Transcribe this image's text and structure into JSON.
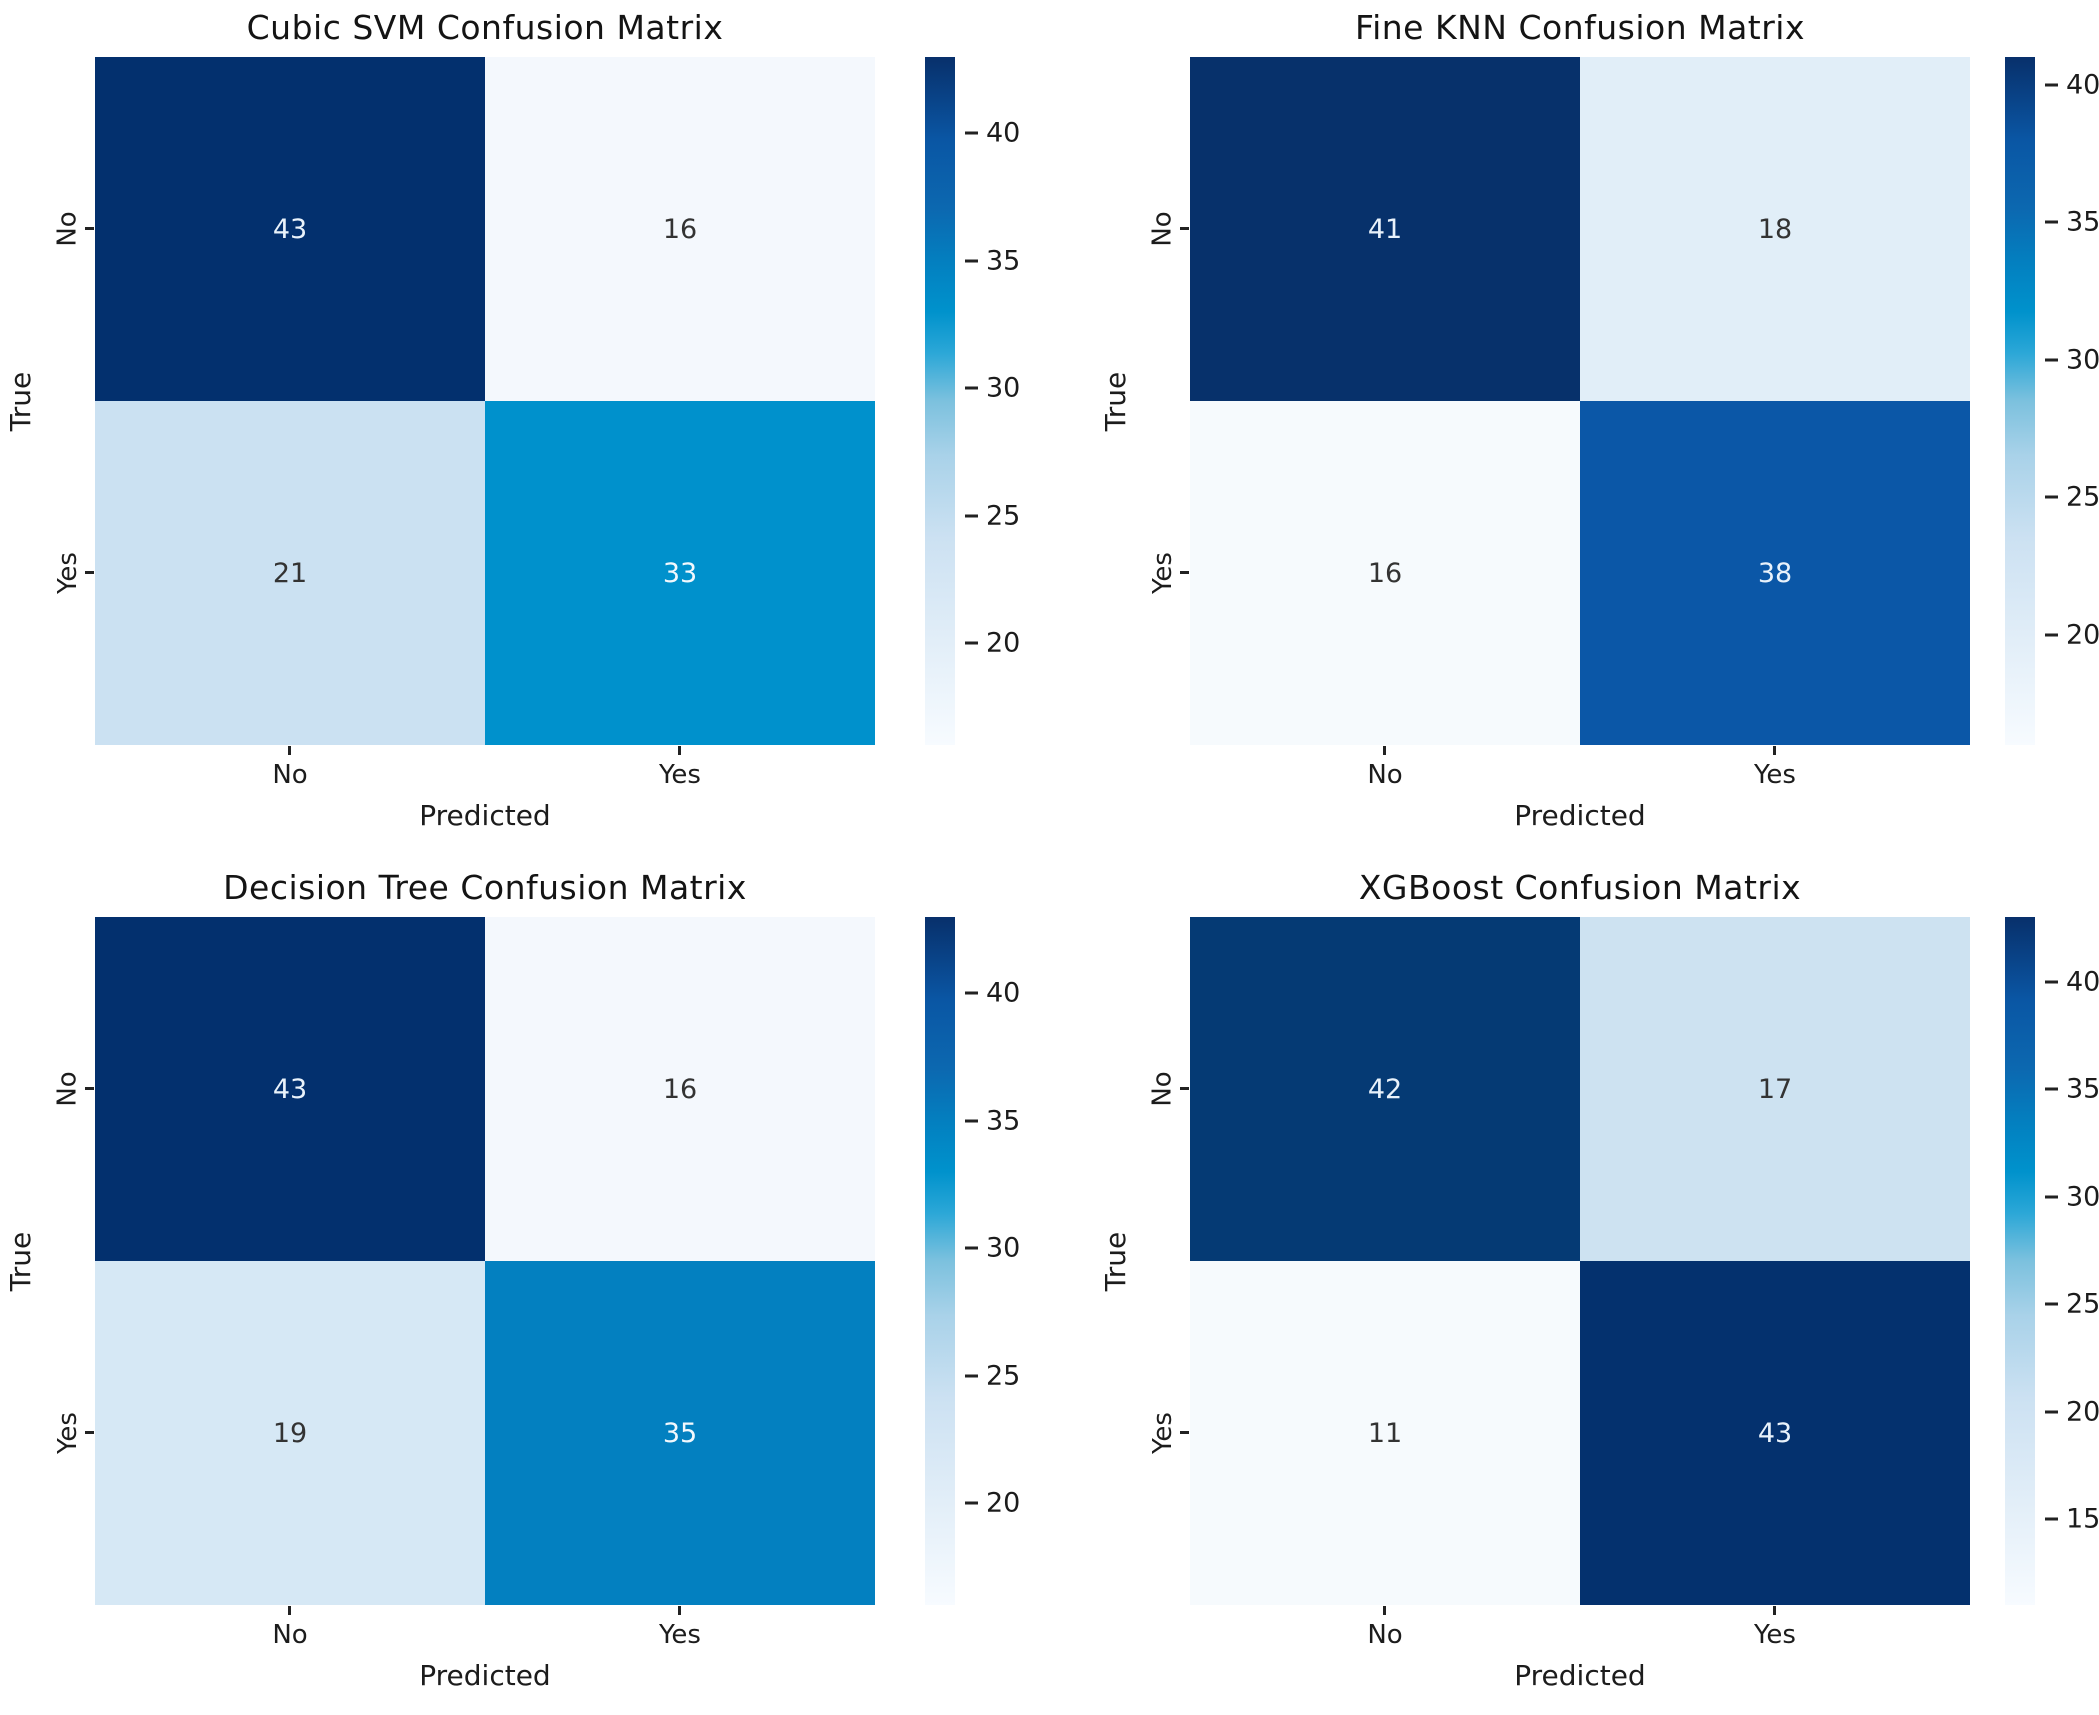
{
  "figure": {
    "background": "#ffffff"
  },
  "colormap_gradient": [
    {
      "stop": 0,
      "color": "#f7fbff"
    },
    {
      "stop": 15,
      "color": "#e2eef8"
    },
    {
      "stop": 30,
      "color": "#cce1f2"
    },
    {
      "stop": 42,
      "color": "#a9d2e9"
    },
    {
      "stop": 50,
      "color": "#7cc1de"
    },
    {
      "stop": 57,
      "color": "#2ba7d7"
    },
    {
      "stop": 63,
      "color": "#0092cc"
    },
    {
      "stop": 70,
      "color": "#0380c0"
    },
    {
      "stop": 78,
      "color": "#0c68b0"
    },
    {
      "stop": 88,
      "color": "#0a56a4"
    },
    {
      "stop": 100,
      "color": "#08306b"
    }
  ],
  "plots": [
    {
      "title": "Cubic SVM Confusion Matrix",
      "xlabel": "Predicted",
      "ylabel": "True",
      "xticks": [
        "No",
        "Yes"
      ],
      "yticks": [
        "No",
        "Yes"
      ],
      "cells": [
        {
          "value": "43",
          "bg": "#03306e",
          "fg": "#e9f2fb"
        },
        {
          "value": "16",
          "bg": "#f4f8fd",
          "fg": "#333333"
        },
        {
          "value": "21",
          "bg": "#cbe1f2",
          "fg": "#333333"
        },
        {
          "value": "33",
          "bg": "#0091cc",
          "fg": "#f2f8fd"
        }
      ],
      "colorbar": {
        "vmin": 16,
        "vmax": 43,
        "ticks": [
          {
            "label": "40",
            "pos": 11.11
          },
          {
            "label": "35",
            "pos": 29.63
          },
          {
            "label": "30",
            "pos": 48.15
          },
          {
            "label": "25",
            "pos": 66.67
          },
          {
            "label": "20",
            "pos": 85.19
          }
        ]
      }
    },
    {
      "title": "Fine KNN Confusion Matrix",
      "xlabel": "Predicted",
      "ylabel": "True",
      "xticks": [
        "No",
        "Yes"
      ],
      "yticks": [
        "No",
        "Yes"
      ],
      "cells": [
        {
          "value": "41",
          "bg": "#07316b",
          "fg": "#e9f2fb"
        },
        {
          "value": "18",
          "bg": "#e1eef8",
          "fg": "#333333"
        },
        {
          "value": "16",
          "bg": "#f6fafd",
          "fg": "#333333"
        },
        {
          "value": "38",
          "bg": "#0b57a7",
          "fg": "#e9f2fb"
        }
      ],
      "colorbar": {
        "vmin": 16,
        "vmax": 41,
        "ticks": [
          {
            "label": "40",
            "pos": 4.0
          },
          {
            "label": "35",
            "pos": 24.0
          },
          {
            "label": "30",
            "pos": 44.0
          },
          {
            "label": "25",
            "pos": 64.0
          },
          {
            "label": "20",
            "pos": 84.0
          }
        ]
      }
    },
    {
      "title": "Decision Tree Confusion Matrix",
      "xlabel": "Predicted",
      "ylabel": "True",
      "xticks": [
        "No",
        "Yes"
      ],
      "yticks": [
        "No",
        "Yes"
      ],
      "cells": [
        {
          "value": "43",
          "bg": "#03306e",
          "fg": "#e9f2fb"
        },
        {
          "value": "16",
          "bg": "#f4f8fd",
          "fg": "#333333"
        },
        {
          "value": "19",
          "bg": "#d6e8f5",
          "fg": "#333333"
        },
        {
          "value": "35",
          "bg": "#0380c0",
          "fg": "#f2f8fd"
        }
      ],
      "colorbar": {
        "vmin": 16,
        "vmax": 43,
        "ticks": [
          {
            "label": "40",
            "pos": 11.11
          },
          {
            "label": "35",
            "pos": 29.63
          },
          {
            "label": "30",
            "pos": 48.15
          },
          {
            "label": "25",
            "pos": 66.67
          },
          {
            "label": "20",
            "pos": 85.19
          }
        ]
      }
    },
    {
      "title": "XGBoost Confusion Matrix",
      "xlabel": "Predicted",
      "ylabel": "True",
      "xticks": [
        "No",
        "Yes"
      ],
      "yticks": [
        "No",
        "Yes"
      ],
      "cells": [
        {
          "value": "42",
          "bg": "#053a74",
          "fg": "#e9f2fb"
        },
        {
          "value": "17",
          "bg": "#cde2f1",
          "fg": "#333333"
        },
        {
          "value": "11",
          "bg": "#f6fafd",
          "fg": "#333333"
        },
        {
          "value": "43",
          "bg": "#04316e",
          "fg": "#e9f2fb"
        }
      ],
      "colorbar": {
        "vmin": 11,
        "vmax": 43,
        "ticks": [
          {
            "label": "40",
            "pos": 9.38
          },
          {
            "label": "35",
            "pos": 25.0
          },
          {
            "label": "30",
            "pos": 40.63
          },
          {
            "label": "25",
            "pos": 56.25
          },
          {
            "label": "20",
            "pos": 71.88
          },
          {
            "label": "15",
            "pos": 87.5
          }
        ]
      }
    }
  ],
  "chart_data": [
    {
      "type": "heatmap",
      "title": "Cubic SVM Confusion Matrix",
      "xlabel": "Predicted",
      "ylabel": "True",
      "x_categories": [
        "No",
        "Yes"
      ],
      "y_categories": [
        "No",
        "Yes"
      ],
      "matrix": [
        [
          43,
          16
        ],
        [
          21,
          33
        ]
      ],
      "vmin": 16,
      "vmax": 43,
      "colorbar_ticks": [
        20,
        25,
        30,
        35,
        40
      ],
      "colormap": "Blues",
      "legend_position": "colorbar-right"
    },
    {
      "type": "heatmap",
      "title": "Fine KNN Confusion Matrix",
      "xlabel": "Predicted",
      "ylabel": "True",
      "x_categories": [
        "No",
        "Yes"
      ],
      "y_categories": [
        "No",
        "Yes"
      ],
      "matrix": [
        [
          41,
          18
        ],
        [
          16,
          38
        ]
      ],
      "vmin": 16,
      "vmax": 41,
      "colorbar_ticks": [
        20,
        25,
        30,
        35,
        40
      ],
      "colormap": "Blues",
      "legend_position": "colorbar-right"
    },
    {
      "type": "heatmap",
      "title": "Decision Tree Confusion Matrix",
      "xlabel": "Predicted",
      "ylabel": "True",
      "x_categories": [
        "No",
        "Yes"
      ],
      "y_categories": [
        "No",
        "Yes"
      ],
      "matrix": [
        [
          43,
          16
        ],
        [
          19,
          35
        ]
      ],
      "vmin": 16,
      "vmax": 43,
      "colorbar_ticks": [
        20,
        25,
        30,
        35,
        40
      ],
      "colormap": "Blues",
      "legend_position": "colorbar-right"
    },
    {
      "type": "heatmap",
      "title": "XGBoost Confusion Matrix",
      "xlabel": "Predicted",
      "ylabel": "True",
      "x_categories": [
        "No",
        "Yes"
      ],
      "y_categories": [
        "No",
        "Yes"
      ],
      "matrix": [
        [
          42,
          17
        ],
        [
          11,
          43
        ]
      ],
      "vmin": 11,
      "vmax": 43,
      "colorbar_ticks": [
        15,
        20,
        25,
        30,
        35,
        40
      ],
      "colormap": "Blues",
      "legend_position": "colorbar-right"
    }
  ]
}
